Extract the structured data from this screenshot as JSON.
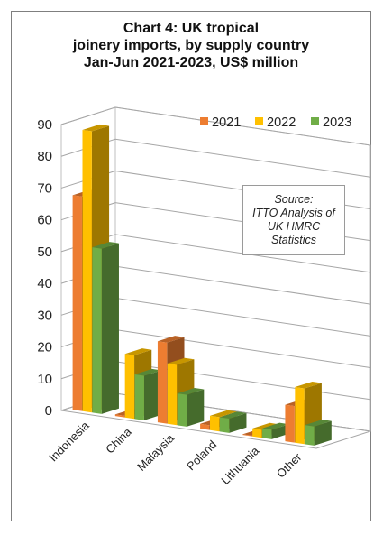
{
  "chart_data": {
    "type": "bar",
    "title_lines": [
      "Chart 4: UK tropical",
      "joinery imports, by supply country",
      "Jan-Jun 2021-2023, US$ million"
    ],
    "categories": [
      "Indonesia",
      "China",
      "Malaysia",
      "Poland",
      "Lithuania",
      "Other"
    ],
    "series": [
      {
        "name": "2021",
        "values": [
          67.5,
          0.5,
          25.5,
          1.5,
          0.2,
          11.5
        ],
        "color": "#ed7d31"
      },
      {
        "name": "2022",
        "values": [
          88.5,
          20.0,
          19.0,
          4.5,
          2.5,
          17.5
        ],
        "color": "#ffc000"
      },
      {
        "name": "2023",
        "values": [
          52.0,
          14.0,
          10.0,
          4.5,
          3.0,
          6.0
        ],
        "color": "#70ad47"
      }
    ],
    "y_ticks": [
      "0",
      "10",
      "20",
      "30",
      "40",
      "50",
      "60",
      "70",
      "80",
      "90"
    ],
    "ylim": [
      0,
      90
    ],
    "legend_position": "top-right",
    "gridlines": true,
    "annotation": [
      "Source:",
      "ITTO Analysis of",
      "UK HMRC",
      "Statistics"
    ]
  }
}
